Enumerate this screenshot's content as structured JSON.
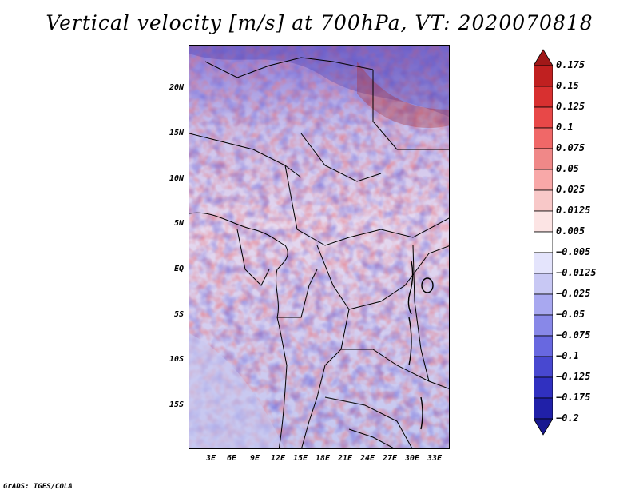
{
  "title": "Vertical velocity [m/s] at 700hPa, VT: 2020070818",
  "map": {
    "lat_labels": [
      "20N",
      "15N",
      "10N",
      "5N",
      "EQ",
      "5S",
      "10S",
      "15S"
    ],
    "lon_labels": [
      "3E",
      "6E",
      "9E",
      "12E",
      "15E",
      "18E",
      "21E",
      "24E",
      "27E",
      "30E",
      "33E"
    ]
  },
  "colorbar": {
    "levels": [
      "0.175",
      "0.15",
      "0.125",
      "0.1",
      "0.075",
      "0.05",
      "0.025",
      "0.0125",
      "0.005",
      "−0.005",
      "−0.0125",
      "−0.025",
      "−0.05",
      "−0.075",
      "−0.1",
      "−0.125",
      "−0.175",
      "−0.2"
    ],
    "colors": [
      "#a01818",
      "#c02020",
      "#d83030",
      "#e84848",
      "#f06868",
      "#f08888",
      "#f8a8a8",
      "#f8c8c8",
      "#fce4e4",
      "#ffffff",
      "#e4e4fc",
      "#c8c8f4",
      "#a8a8f0",
      "#8888e8",
      "#6868e0",
      "#4848d0",
      "#3030c0",
      "#2020a8",
      "#181890"
    ]
  },
  "credit": "GrADS: IGES/COLA"
}
